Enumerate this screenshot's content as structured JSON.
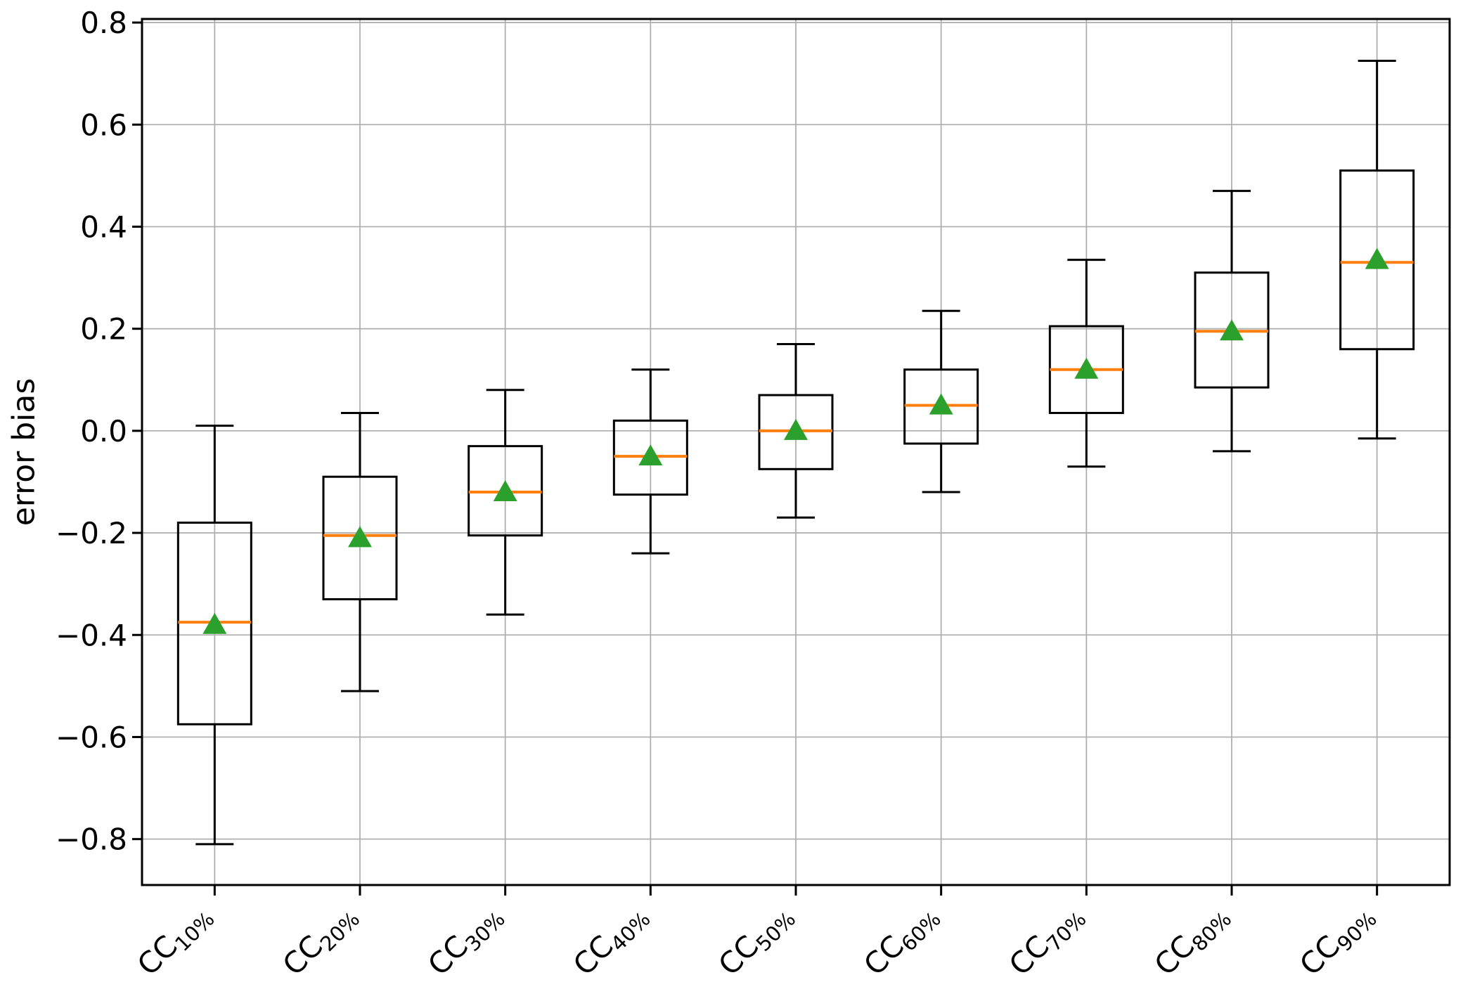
{
  "figure": {
    "background": "#ffffff"
  },
  "chart_data": {
    "type": "box",
    "title": "",
    "xlabel": "",
    "ylabel": "error bias",
    "grid": true,
    "legend": null,
    "ylim": [
      -0.89,
      0.807
    ],
    "yticks": [
      {
        "value": -0.8,
        "label": "−0.8"
      },
      {
        "value": -0.6,
        "label": "−0.6"
      },
      {
        "value": -0.4,
        "label": "−0.4"
      },
      {
        "value": -0.2,
        "label": "−0.2"
      },
      {
        "value": 0.0,
        "label": "0.0"
      },
      {
        "value": 0.2,
        "label": "0.2"
      },
      {
        "value": 0.4,
        "label": "0.4"
      },
      {
        "value": 0.6,
        "label": "0.6"
      },
      {
        "value": 0.8,
        "label": "0.8"
      }
    ],
    "categories": [
      {
        "base": "CC",
        "sub": "10%"
      },
      {
        "base": "CC",
        "sub": "20%"
      },
      {
        "base": "CC",
        "sub": "30%"
      },
      {
        "base": "CC",
        "sub": "40%"
      },
      {
        "base": "CC",
        "sub": "50%"
      },
      {
        "base": "CC",
        "sub": "60%"
      },
      {
        "base": "CC",
        "sub": "70%"
      },
      {
        "base": "CC",
        "sub": "80%"
      },
      {
        "base": "CC",
        "sub": "90%"
      }
    ],
    "boxes": [
      {
        "label": "CC10%",
        "whislo": -0.81,
        "q1": -0.575,
        "med": -0.375,
        "q3": -0.18,
        "whishi": 0.01,
        "mean": -0.38
      },
      {
        "label": "CC20%",
        "whislo": -0.51,
        "q1": -0.33,
        "med": -0.205,
        "q3": -0.09,
        "whishi": 0.035,
        "mean": -0.21
      },
      {
        "label": "CC30%",
        "whislo": -0.36,
        "q1": -0.205,
        "med": -0.12,
        "q3": -0.03,
        "whishi": 0.08,
        "mean": -0.12
      },
      {
        "label": "CC40%",
        "whislo": -0.24,
        "q1": -0.125,
        "med": -0.05,
        "q3": 0.02,
        "whishi": 0.12,
        "mean": -0.05
      },
      {
        "label": "CC50%",
        "whislo": -0.17,
        "q1": -0.075,
        "med": 0.0,
        "q3": 0.07,
        "whishi": 0.17,
        "mean": 0.0
      },
      {
        "label": "CC60%",
        "whislo": -0.12,
        "q1": -0.025,
        "med": 0.05,
        "q3": 0.12,
        "whishi": 0.235,
        "mean": 0.05
      },
      {
        "label": "CC70%",
        "whislo": -0.07,
        "q1": 0.035,
        "med": 0.12,
        "q3": 0.205,
        "whishi": 0.335,
        "mean": 0.12
      },
      {
        "label": "CC80%",
        "whislo": -0.04,
        "q1": 0.085,
        "med": 0.195,
        "q3": 0.31,
        "whishi": 0.47,
        "mean": 0.195
      },
      {
        "label": "CC90%",
        "whislo": -0.015,
        "q1": 0.16,
        "med": 0.33,
        "q3": 0.51,
        "whishi": 0.725,
        "mean": 0.335
      }
    ],
    "colors": {
      "box_line": "#000000",
      "median": "#ff7f0e",
      "mean_marker": "#2ca02c",
      "grid": "#b0b0b0",
      "spine": "#000000",
      "text": "#000000"
    }
  }
}
